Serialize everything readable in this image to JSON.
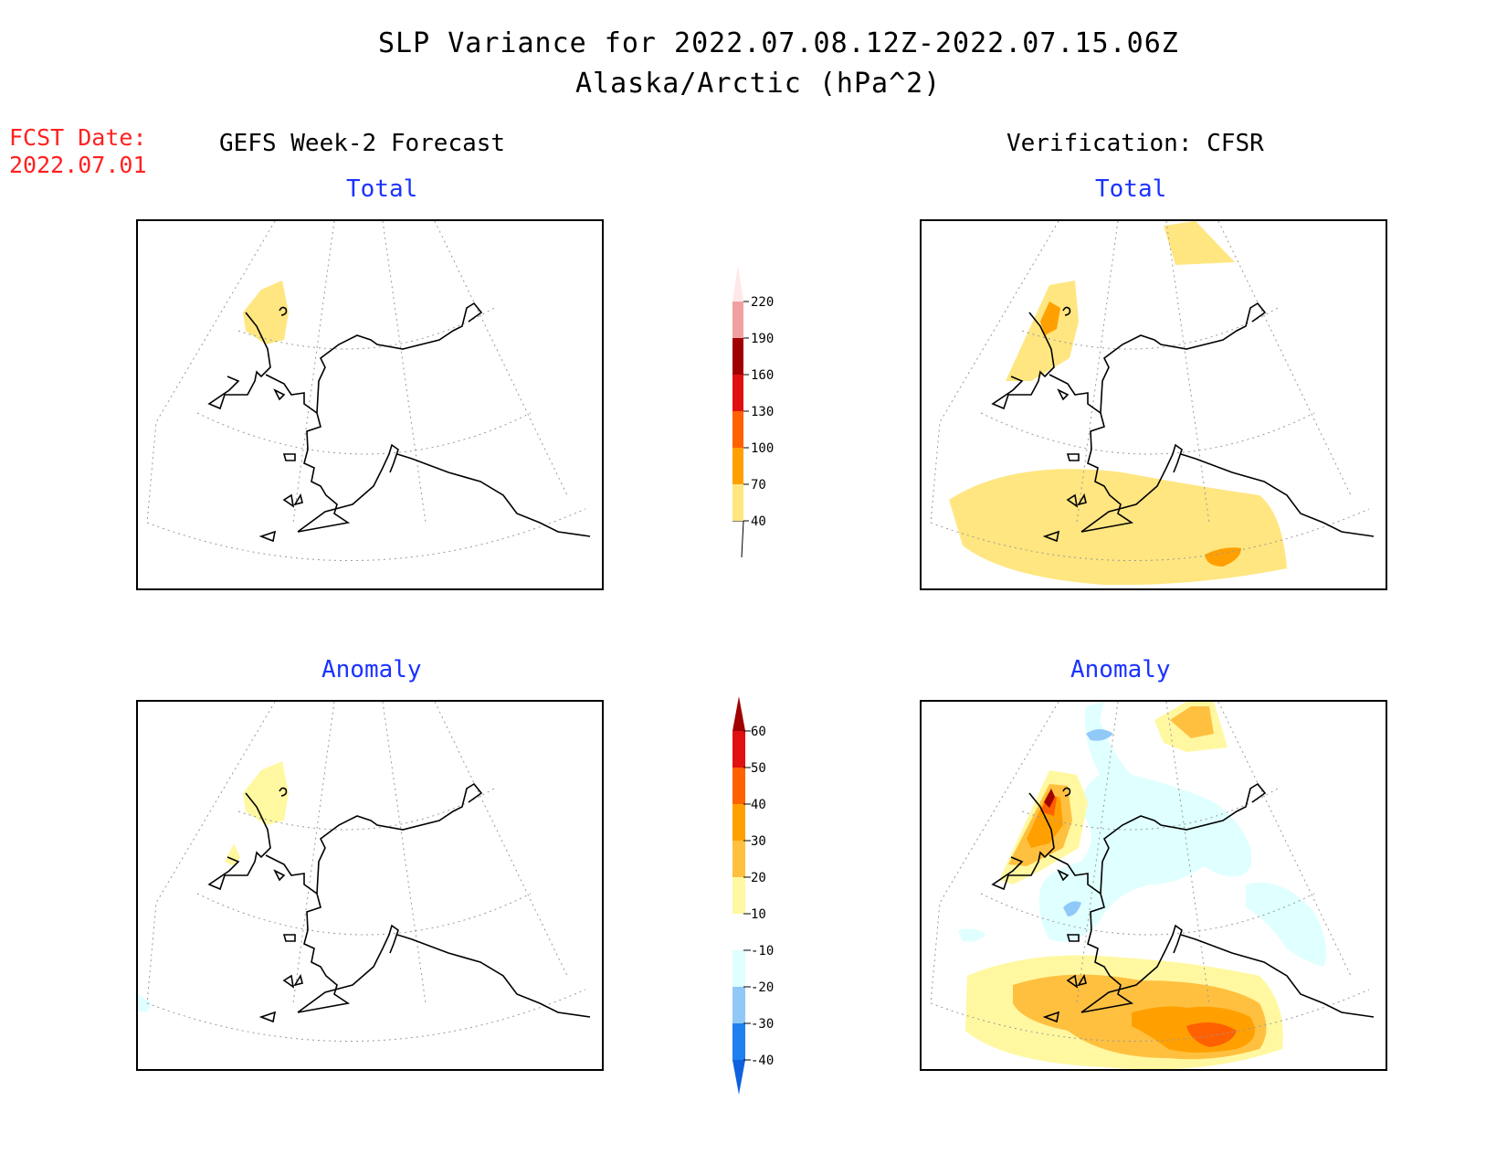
{
  "title": {
    "line1": "SLP Variance for 2022.07.08.12Z-2022.07.15.06Z",
    "line2": "Alaska/Arctic (hPa^2)"
  },
  "fcst_date": {
    "label": "FCST Date:",
    "value": "2022.07.01"
  },
  "columns": {
    "left": "GEFS Week-2 Forecast",
    "right": "Verification: CFSR"
  },
  "panels": {
    "total_label": "Total",
    "anomaly_label": "Anomaly"
  },
  "colorbars": {
    "total": {
      "levels": [
        "40",
        "70",
        "100",
        "130",
        "160",
        "190",
        "220"
      ],
      "colors": [
        "#ffe680",
        "#ffa000",
        "#ff6000",
        "#e01010",
        "#a00000",
        "#f0a0a0",
        "#ffe8e8"
      ]
    },
    "anomaly": {
      "levels": [
        "-40",
        "-30",
        "-20",
        "-10",
        "10",
        "20",
        "30",
        "40",
        "50",
        "60"
      ],
      "colors": [
        "#1060e0",
        "#2080f0",
        "#90c8f8",
        "#e0ffff",
        "#ffffff",
        "#fff8a0",
        "#ffc040",
        "#ffa000",
        "#ff6000",
        "#e01010",
        "#a00000"
      ]
    }
  },
  "colors": {
    "fcst": "#ff2020",
    "subtitle": "#1a33ff"
  }
}
